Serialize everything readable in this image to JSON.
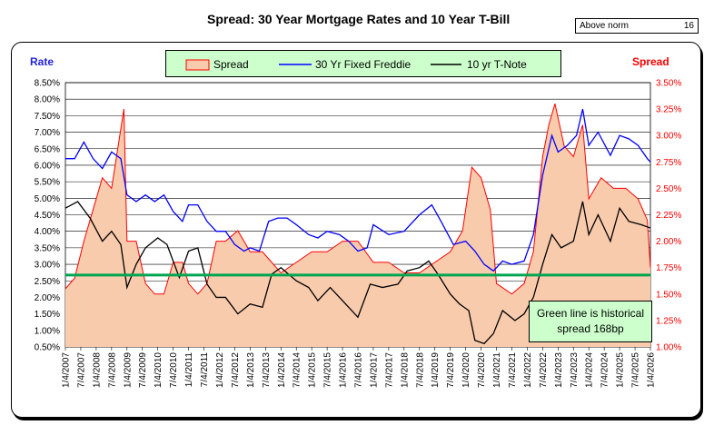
{
  "title": "Spread:  30 Year Mortgage Rates and 10 Year T-Bill",
  "status_box": {
    "label": "Above norm",
    "value": "16"
  },
  "legend": {
    "spread": "Spread",
    "freddie": "30 Yr Fixed Freddie",
    "tnote": "10 yr T-Note"
  },
  "note": {
    "line1": "Green line is historical",
    "line2": "spread 168bp"
  },
  "colors": {
    "spread_fill": "#f9cbad",
    "spread_line": "#ff0000",
    "freddie": "#0000ff",
    "tnote": "#000000",
    "norm_line": "#00a651",
    "legend_bg": "#ccffcc",
    "left_title": "#2323d8"
  },
  "chart_data": {
    "type": "line",
    "title": "Spread:  30 Year Mortgage Rates and 10 Year T-Bill",
    "left_axis": {
      "title": "Rate",
      "min": 0.5,
      "max": 8.5,
      "step": 0.5,
      "tick_labels": [
        "0.50%",
        "1.00%",
        "1.50%",
        "2.00%",
        "2.50%",
        "3.00%",
        "3.50%",
        "4.00%",
        "4.50%",
        "5.00%",
        "5.50%",
        "6.00%",
        "6.50%",
        "7.00%",
        "7.50%",
        "8.00%",
        "8.50%"
      ]
    },
    "right_axis": {
      "title": "Spread",
      "min": 1.0,
      "max": 3.5,
      "step": 0.25,
      "tick_labels": [
        "1.00%",
        "1.25%",
        "1.50%",
        "1.75%",
        "2.00%",
        "2.25%",
        "2.50%",
        "2.75%",
        "3.00%",
        "3.25%",
        "3.50%"
      ]
    },
    "x_range": [
      2007.0,
      2026.0
    ],
    "x_tick_labels": [
      "1/4/2007",
      "7/4/2007",
      "1/4/2008",
      "7/4/2008",
      "1/4/2009",
      "7/4/2009",
      "1/4/2010",
      "7/4/2010",
      "1/4/2011",
      "7/4/2011",
      "1/4/2012",
      "7/4/2012",
      "1/4/2013",
      "7/4/2013",
      "1/4/2014",
      "7/4/2014",
      "1/4/2015",
      "7/4/2015",
      "1/4/2016",
      "7/4/2016",
      "1/4/2017",
      "7/4/2017",
      "1/4/2018",
      "7/4/2018",
      "1/4/2019",
      "7/4/2019",
      "1/4/2020",
      "7/4/2020",
      "1/4/2021",
      "7/4/2021",
      "1/4/2022",
      "7/4/2022",
      "1/4/2023",
      "7/4/2023",
      "1/4/2024",
      "7/4/2024",
      "1/4/2025",
      "7/4/2025",
      "1/4/2026"
    ],
    "historical_spread": 1.68,
    "series": [
      {
        "name": "30 Yr Fixed Freddie",
        "axis": "left",
        "x": [
          2007.0,
          2007.3,
          2007.6,
          2007.9,
          2008.2,
          2008.5,
          2008.8,
          2009.0,
          2009.3,
          2009.6,
          2009.9,
          2010.2,
          2010.5,
          2010.8,
          2011.0,
          2011.3,
          2011.6,
          2011.9,
          2012.2,
          2012.5,
          2012.8,
          2013.0,
          2013.3,
          2013.6,
          2013.9,
          2014.2,
          2014.5,
          2014.9,
          2015.2,
          2015.5,
          2015.9,
          2016.2,
          2016.5,
          2016.8,
          2017.0,
          2017.5,
          2018.0,
          2018.5,
          2018.9,
          2019.2,
          2019.6,
          2020.0,
          2020.3,
          2020.6,
          2020.9,
          2021.2,
          2021.5,
          2021.9,
          2022.2,
          2022.5,
          2022.8,
          2023.0,
          2023.3,
          2023.6,
          2023.8,
          2024.0,
          2024.3,
          2024.7,
          2025.0,
          2025.3,
          2025.6,
          2025.9,
          2026.0
        ],
        "values": [
          6.2,
          6.2,
          6.7,
          6.2,
          5.9,
          6.4,
          6.2,
          5.1,
          4.9,
          5.1,
          4.9,
          5.1,
          4.6,
          4.3,
          4.8,
          4.8,
          4.3,
          4.0,
          4.0,
          3.6,
          3.4,
          3.5,
          3.4,
          4.3,
          4.4,
          4.4,
          4.2,
          3.9,
          3.8,
          4.0,
          3.9,
          3.7,
          3.4,
          3.5,
          4.2,
          3.9,
          4.0,
          4.5,
          4.8,
          4.3,
          3.6,
          3.7,
          3.4,
          3.0,
          2.8,
          3.1,
          3.0,
          3.1,
          3.9,
          5.7,
          6.9,
          6.4,
          6.6,
          6.9,
          7.7,
          6.6,
          7.0,
          6.3,
          6.9,
          6.8,
          6.6,
          6.2,
          6.1
        ]
      },
      {
        "name": "10 yr T-Note",
        "axis": "left",
        "x": [
          2007.0,
          2007.4,
          2007.8,
          2008.2,
          2008.5,
          2008.8,
          2009.0,
          2009.3,
          2009.6,
          2010.0,
          2010.3,
          2010.7,
          2011.0,
          2011.3,
          2011.6,
          2011.9,
          2012.2,
          2012.6,
          2013.0,
          2013.4,
          2013.7,
          2014.0,
          2014.5,
          2014.9,
          2015.2,
          2015.6,
          2016.0,
          2016.5,
          2016.9,
          2017.3,
          2017.8,
          2018.1,
          2018.5,
          2018.8,
          2019.1,
          2019.5,
          2019.8,
          2020.1,
          2020.3,
          2020.6,
          2020.9,
          2021.2,
          2021.6,
          2021.9,
          2022.2,
          2022.5,
          2022.8,
          2023.1,
          2023.5,
          2023.8,
          2024.0,
          2024.3,
          2024.7,
          2025.0,
          2025.3,
          2025.7,
          2026.0
        ],
        "values": [
          4.7,
          4.9,
          4.4,
          3.7,
          4.0,
          3.6,
          2.3,
          3.0,
          3.5,
          3.8,
          3.6,
          2.6,
          3.4,
          3.5,
          2.4,
          2.0,
          2.0,
          1.5,
          1.8,
          1.7,
          2.7,
          2.9,
          2.5,
          2.3,
          1.9,
          2.3,
          1.9,
          1.4,
          2.4,
          2.3,
          2.4,
          2.8,
          2.9,
          3.1,
          2.7,
          2.1,
          1.8,
          1.6,
          0.7,
          0.6,
          0.9,
          1.6,
          1.3,
          1.5,
          2.0,
          3.0,
          3.9,
          3.5,
          3.7,
          4.9,
          3.9,
          4.5,
          3.7,
          4.7,
          4.3,
          4.2,
          4.1
        ]
      },
      {
        "name": "Spread",
        "axis": "right",
        "x": [
          2007.0,
          2007.3,
          2007.6,
          2007.9,
          2008.2,
          2008.5,
          2008.9,
          2009.0,
          2009.3,
          2009.6,
          2009.9,
          2010.2,
          2010.5,
          2010.8,
          2011.0,
          2011.3,
          2011.6,
          2011.9,
          2012.2,
          2012.6,
          2013.0,
          2013.4,
          2013.7,
          2014.0,
          2014.5,
          2015.0,
          2015.5,
          2016.0,
          2016.5,
          2017.0,
          2017.5,
          2018.0,
          2018.5,
          2019.0,
          2019.5,
          2019.9,
          2020.2,
          2020.5,
          2020.8,
          2021.0,
          2021.5,
          2021.9,
          2022.2,
          2022.5,
          2022.7,
          2022.9,
          2023.2,
          2023.5,
          2023.8,
          2024.0,
          2024.4,
          2024.8,
          2025.2,
          2025.6,
          2025.9,
          2026.0
        ],
        "values": [
          1.55,
          1.65,
          2.0,
          2.3,
          2.6,
          2.5,
          3.25,
          2.0,
          2.0,
          1.6,
          1.5,
          1.5,
          1.8,
          1.8,
          1.6,
          1.5,
          1.6,
          2.0,
          2.0,
          2.1,
          1.9,
          1.9,
          1.8,
          1.7,
          1.8,
          1.9,
          1.9,
          2.0,
          2.0,
          1.8,
          1.8,
          1.7,
          1.7,
          1.8,
          1.9,
          2.1,
          2.7,
          2.6,
          2.3,
          1.6,
          1.5,
          1.6,
          1.9,
          2.8,
          3.1,
          3.3,
          2.9,
          2.8,
          3.1,
          2.4,
          2.6,
          2.5,
          2.5,
          2.4,
          2.2,
          1.75
        ]
      }
    ]
  }
}
